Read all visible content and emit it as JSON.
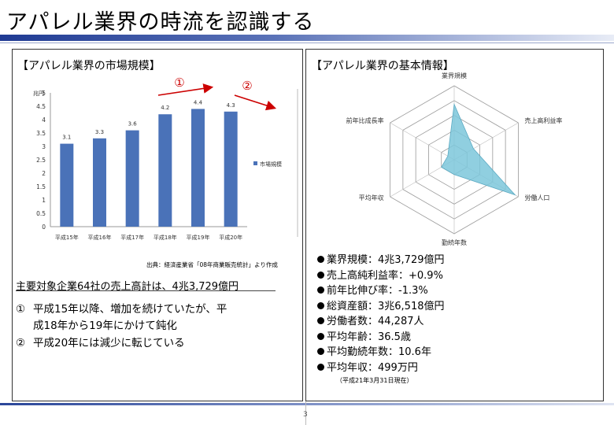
{
  "page": {
    "title": "アパレル業界の時流を認識する",
    "page_number": "3"
  },
  "left_panel": {
    "heading": "【アパレル業界の市場規模】",
    "source": "出典：経済産業省「08年商業販売統計」より作成",
    "summary": "主要対象企業64社の売上高計は、4兆3,729億円",
    "notes": [
      {
        "num": "①",
        "text1": "平成15年以降、増加を続けていたが、平",
        "text2": "成18年から19年にかけて鈍化"
      },
      {
        "num": "②",
        "text1": "平成20年には減少に転じている",
        "text2": ""
      }
    ],
    "markers": [
      "①",
      "②"
    ]
  },
  "right_panel": {
    "heading": "【アパレル業界の基本情報】",
    "info": [
      "業界規模：4兆3,729億円",
      "売上高純利益率：+0.9%",
      "前年比伸び率：-1.3%",
      "総資産額：3兆6,518億円",
      "労働者数：44,287人",
      "平均年齢：36.5歳",
      "平均勤続年数：10.6年",
      "平均年収：499万円"
    ],
    "as_of": "（平成21年3月31日現在）"
  },
  "chart_data": [
    {
      "type": "bar",
      "ylabel": "兆円",
      "categories": [
        "平成15年",
        "平成16年",
        "平成17年",
        "平成18年",
        "平成19年",
        "平成20年"
      ],
      "series": [
        {
          "name": "市場規模",
          "values": [
            3.1,
            3.3,
            3.6,
            4.2,
            4.4,
            4.3
          ]
        }
      ],
      "data_labels": [
        "3.1",
        "3.3",
        "3.6",
        "4.2",
        "4.4",
        "4.3"
      ],
      "ylim": [
        0,
        5
      ],
      "yticks": [
        "0",
        "0.5",
        "1",
        "1.5",
        "2",
        "2.5",
        "3",
        "3.5",
        "4",
        "4.5",
        "5"
      ],
      "legend_position": "right",
      "color": "#4a72b8"
    },
    {
      "type": "radar",
      "axes": [
        "業界規模",
        "売上高利益率",
        "労働人口",
        "勤続年数",
        "平均年収",
        "前年比成長率"
      ],
      "values": [
        0.75,
        0.3,
        0.95,
        0.2,
        0.2,
        0.1
      ],
      "rings": 5,
      "color": "#7cc7da"
    }
  ]
}
